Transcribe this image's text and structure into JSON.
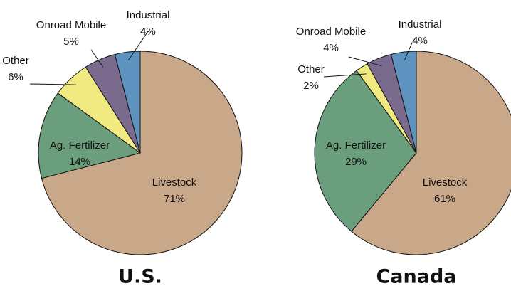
{
  "chart_data": [
    {
      "type": "pie",
      "title": "U.S.",
      "categories": [
        "Livestock",
        "Ag. Fertilizer",
        "Other",
        "Onroad Mobile",
        "Industrial"
      ],
      "values": [
        71,
        14,
        6,
        5,
        4
      ],
      "value_labels": [
        "71%",
        "14%",
        "6%",
        "5%",
        "4%"
      ],
      "colors": [
        "#c9a88a",
        "#6b9e7c",
        "#f0ea80",
        "#7a6a8e",
        "#5e93bf"
      ]
    },
    {
      "type": "pie",
      "title": "Canada",
      "categories": [
        "Livestock",
        "Ag. Fertilizer",
        "Other",
        "Onroad Mobile",
        "Industrial"
      ],
      "values": [
        61,
        29,
        2,
        4,
        4
      ],
      "value_labels": [
        "61%",
        "29%",
        "2%",
        "4%",
        "4%"
      ],
      "colors": [
        "#c9a88a",
        "#6b9e7c",
        "#f0ea80",
        "#7a6a8e",
        "#5e93bf"
      ]
    }
  ]
}
